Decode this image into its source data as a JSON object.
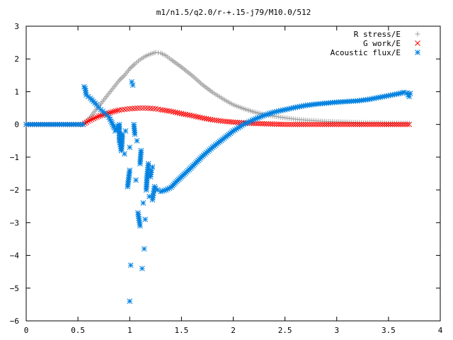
{
  "chart_data": {
    "type": "scatter",
    "title": "m1/n1.5/q2.0/r-+.15-j79/M10.0/512",
    "xlabel": "",
    "ylabel": "",
    "xlim": [
      0,
      4
    ],
    "ylim": [
      -6,
      3
    ],
    "xticks": [
      0,
      0.5,
      1,
      1.5,
      2,
      2.5,
      3,
      3.5,
      4
    ],
    "xtick_labels": [
      "0",
      "0.5",
      "1",
      "1.5",
      "2",
      "2.5",
      "3",
      "3.5",
      "4"
    ],
    "yticks": [
      -6,
      -5,
      -4,
      -3,
      -2,
      -1,
      0,
      1,
      2,
      3
    ],
    "ytick_labels": [
      "−6",
      "−5",
      "−4",
      "−3",
      "−2",
      "−1",
      "0",
      "1",
      "2",
      "3"
    ],
    "grid": false,
    "legend_position": "top-right",
    "series": [
      {
        "name": "R stress/E",
        "marker": "+",
        "color": "#a0a0a0",
        "points": [
          [
            0,
            0
          ],
          [
            0.1,
            0
          ],
          [
            0.2,
            0
          ],
          [
            0.3,
            0
          ],
          [
            0.4,
            0
          ],
          [
            0.5,
            0
          ],
          [
            0.55,
            0
          ],
          [
            0.6,
            0.15
          ],
          [
            0.65,
            0.35
          ],
          [
            0.7,
            0.55
          ],
          [
            0.75,
            0.75
          ],
          [
            0.8,
            0.95
          ],
          [
            0.85,
            1.15
          ],
          [
            0.9,
            1.35
          ],
          [
            0.95,
            1.5
          ],
          [
            1.0,
            1.7
          ],
          [
            1.05,
            1.85
          ],
          [
            1.1,
            1.98
          ],
          [
            1.15,
            2.08
          ],
          [
            1.2,
            2.15
          ],
          [
            1.25,
            2.2
          ],
          [
            1.3,
            2.18
          ],
          [
            1.35,
            2.1
          ],
          [
            1.4,
            1.98
          ],
          [
            1.5,
            1.75
          ],
          [
            1.6,
            1.5
          ],
          [
            1.7,
            1.22
          ],
          [
            1.8,
            0.98
          ],
          [
            1.9,
            0.78
          ],
          [
            2.0,
            0.6
          ],
          [
            2.1,
            0.48
          ],
          [
            2.2,
            0.38
          ],
          [
            2.3,
            0.3
          ],
          [
            2.4,
            0.25
          ],
          [
            2.5,
            0.2
          ],
          [
            2.6,
            0.16
          ],
          [
            2.7,
            0.13
          ],
          [
            2.8,
            0.11
          ],
          [
            2.9,
            0.09
          ],
          [
            3.0,
            0.08
          ],
          [
            3.1,
            0.07
          ],
          [
            3.2,
            0.06
          ],
          [
            3.3,
            0.05
          ],
          [
            3.4,
            0.05
          ],
          [
            3.5,
            0.04
          ],
          [
            3.6,
            0.04
          ],
          [
            3.7,
            0.04
          ]
        ]
      },
      {
        "name": "G work/E",
        "marker": "x",
        "color": "#ff0000",
        "points": [
          [
            0,
            0
          ],
          [
            0.1,
            0
          ],
          [
            0.2,
            0
          ],
          [
            0.3,
            0
          ],
          [
            0.4,
            0
          ],
          [
            0.5,
            0
          ],
          [
            0.55,
            0
          ],
          [
            0.6,
            0.1
          ],
          [
            0.65,
            0.18
          ],
          [
            0.7,
            0.25
          ],
          [
            0.75,
            0.3
          ],
          [
            0.8,
            0.35
          ],
          [
            0.85,
            0.4
          ],
          [
            0.9,
            0.44
          ],
          [
            0.95,
            0.46
          ],
          [
            1.0,
            0.48
          ],
          [
            1.05,
            0.49
          ],
          [
            1.1,
            0.5
          ],
          [
            1.15,
            0.5
          ],
          [
            1.2,
            0.49
          ],
          [
            1.25,
            0.48
          ],
          [
            1.3,
            0.45
          ],
          [
            1.4,
            0.4
          ],
          [
            1.5,
            0.33
          ],
          [
            1.6,
            0.27
          ],
          [
            1.7,
            0.2
          ],
          [
            1.8,
            0.14
          ],
          [
            1.9,
            0.1
          ],
          [
            2.0,
            0.07
          ],
          [
            2.1,
            0.05
          ],
          [
            2.2,
            0.03
          ],
          [
            2.3,
            0.02
          ],
          [
            2.4,
            0.01
          ],
          [
            2.5,
            0.0
          ],
          [
            2.6,
            0.0
          ],
          [
            2.7,
            0.0
          ],
          [
            2.8,
            0.0
          ],
          [
            2.9,
            0.0
          ],
          [
            3.0,
            0.0
          ],
          [
            3.1,
            0.0
          ],
          [
            3.2,
            0.0
          ],
          [
            3.3,
            0.0
          ],
          [
            3.4,
            0.0
          ],
          [
            3.5,
            0.0
          ],
          [
            3.6,
            0.0
          ],
          [
            3.7,
            0.0
          ]
        ]
      },
      {
        "name": "Acoustic flux/E",
        "marker": "*",
        "color": "#0080e0",
        "points": [
          [
            0,
            0
          ],
          [
            0.1,
            0
          ],
          [
            0.2,
            0
          ],
          [
            0.3,
            0
          ],
          [
            0.4,
            0
          ],
          [
            0.5,
            0
          ],
          [
            0.55,
            0
          ],
          [
            0.56,
            1.15
          ],
          [
            0.57,
            1.1
          ],
          [
            0.58,
            0.9
          ],
          [
            0.6,
            0.85
          ],
          [
            0.62,
            0.8
          ],
          [
            0.65,
            0.7
          ],
          [
            0.68,
            0.6
          ],
          [
            0.7,
            0.52
          ],
          [
            0.72,
            0.45
          ],
          [
            0.74,
            0.4
          ],
          [
            0.76,
            0.35
          ],
          [
            0.78,
            0.28
          ],
          [
            0.8,
            0.22
          ],
          [
            0.82,
            0.1
          ],
          [
            0.85,
            -0.1
          ],
          [
            0.86,
            -0.2
          ],
          [
            0.88,
            -0.1
          ],
          [
            0.9,
            0.0
          ],
          [
            0.9,
            -0.5
          ],
          [
            0.92,
            -0.8
          ],
          [
            0.93,
            -0.3
          ],
          [
            0.95,
            -0.9
          ],
          [
            0.96,
            -0.2
          ],
          [
            0.98,
            -1.9
          ],
          [
            1.0,
            -1.4
          ],
          [
            1.0,
            -0.7
          ],
          [
            1.0,
            -5.4
          ],
          [
            1.01,
            -4.3
          ],
          [
            1.02,
            1.3
          ],
          [
            1.03,
            1.2
          ],
          [
            1.04,
            0.0
          ],
          [
            1.05,
            -0.3
          ],
          [
            1.06,
            -1.7
          ],
          [
            1.07,
            -0.5
          ],
          [
            1.08,
            -2.7
          ],
          [
            1.1,
            -3.1
          ],
          [
            1.1,
            -1.2
          ],
          [
            1.11,
            -0.8
          ],
          [
            1.12,
            -4.4
          ],
          [
            1.13,
            -2.4
          ],
          [
            1.14,
            -3.8
          ],
          [
            1.15,
            -2.9
          ],
          [
            1.16,
            -2.0
          ],
          [
            1.17,
            -1.5
          ],
          [
            1.18,
            -1.2
          ],
          [
            1.19,
            -2.2
          ],
          [
            1.2,
            -1.6
          ],
          [
            1.21,
            -1.4
          ],
          [
            1.22,
            -1.3
          ],
          [
            1.22,
            -2.3
          ],
          [
            1.23,
            -2.1
          ],
          [
            1.24,
            -1.9
          ],
          [
            1.25,
            -1.95
          ],
          [
            1.27,
            -2.0
          ],
          [
            1.3,
            -2.05
          ],
          [
            1.35,
            -2.0
          ],
          [
            1.4,
            -1.92
          ],
          [
            1.45,
            -1.75
          ],
          [
            1.5,
            -1.6
          ],
          [
            1.6,
            -1.3
          ],
          [
            1.7,
            -0.98
          ],
          [
            1.8,
            -0.7
          ],
          [
            1.9,
            -0.45
          ],
          [
            2.0,
            -0.2
          ],
          [
            2.1,
            0.0
          ],
          [
            2.2,
            0.15
          ],
          [
            2.3,
            0.28
          ],
          [
            2.4,
            0.38
          ],
          [
            2.5,
            0.45
          ],
          [
            2.6,
            0.52
          ],
          [
            2.7,
            0.58
          ],
          [
            2.8,
            0.62
          ],
          [
            2.9,
            0.65
          ],
          [
            3.0,
            0.68
          ],
          [
            3.1,
            0.7
          ],
          [
            3.2,
            0.72
          ],
          [
            3.3,
            0.76
          ],
          [
            3.4,
            0.82
          ],
          [
            3.5,
            0.88
          ],
          [
            3.6,
            0.94
          ],
          [
            3.65,
            0.98
          ],
          [
            3.68,
            0.96
          ],
          [
            3.7,
            0.85
          ],
          [
            3.71,
            0.95
          ]
        ]
      }
    ]
  }
}
